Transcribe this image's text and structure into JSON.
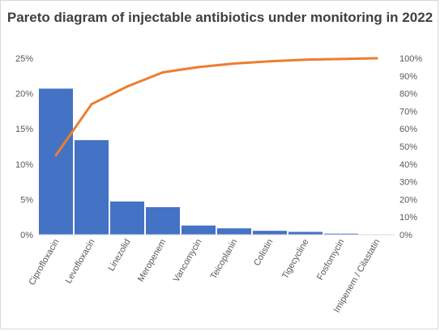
{
  "chart_data": {
    "type": "bar",
    "title": "Pareto diagram of injectable antibiotics under monitoring in 2022",
    "categories": [
      "Ciprofloxacin",
      "Levofloxacin",
      "Linezolid",
      "Meropenem",
      "Vancomycin",
      "Teicoplanin",
      "Colistin",
      "Tigecycline",
      "Fosfomycin",
      "Imipenem / Cilastatin"
    ],
    "series": [
      {
        "type": "bar",
        "axis": "left",
        "color": "#4472c4",
        "values": [
          20.7,
          13.4,
          4.7,
          3.9,
          1.3,
          0.9,
          0.55,
          0.4,
          0.15,
          0.05
        ]
      },
      {
        "type": "line",
        "axis": "right",
        "color": "#ed7d31",
        "values": [
          45,
          74,
          84,
          92,
          95,
          97,
          98.3,
          99.2,
          99.6,
          100
        ]
      }
    ],
    "y_left": {
      "ylim": [
        0,
        25
      ],
      "ticks": [
        "0%",
        "5%",
        "10%",
        "15%",
        "20%",
        "25%"
      ]
    },
    "y_right": {
      "ylim": [
        0,
        100
      ],
      "ticks": [
        "0%",
        "10%",
        "20%",
        "30%",
        "40%",
        "50%",
        "60%",
        "70%",
        "80%",
        "90%",
        "100%"
      ]
    },
    "grid": false,
    "legend": "none"
  }
}
